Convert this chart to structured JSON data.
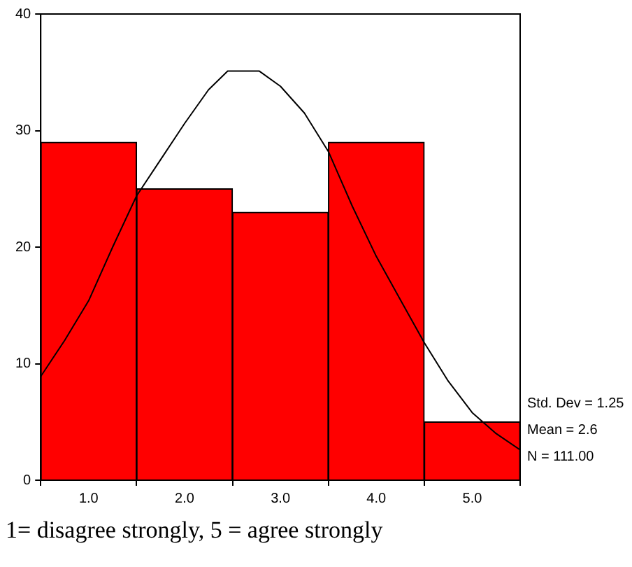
{
  "chart_data": {
    "type": "histogram",
    "bins": [
      0.5,
      1.5,
      2.5,
      3.5,
      4.5,
      5.5
    ],
    "values": [
      29,
      25,
      23,
      29,
      5
    ],
    "color": "#ff0000",
    "series": [
      {
        "type": "line",
        "color": "#000000",
        "x": [
          0.5,
          0.75,
          1.0,
          1.25,
          1.5,
          1.75,
          2.0,
          2.25,
          2.45,
          2.78,
          3.0,
          3.25,
          3.5,
          3.75,
          4.0,
          4.25,
          4.5,
          4.75,
          5.0,
          5.25,
          5.5
        ],
        "values": [
          8.9,
          12,
          15.4,
          20,
          24.4,
          27.5,
          30.6,
          33.5,
          35.1,
          35.1,
          33.8,
          31.5,
          28.2,
          23.5,
          19.2,
          15.5,
          11.8,
          8.5,
          5.8,
          4,
          2.6
        ]
      }
    ],
    "xlim": [
      0.5,
      5.5
    ],
    "xticks": [
      {
        "value": 1,
        "label": "1.0"
      },
      {
        "value": 2,
        "label": "2.0"
      },
      {
        "value": 3,
        "label": "3.0"
      },
      {
        "value": 4,
        "label": "4.0"
      },
      {
        "value": 5,
        "label": "5.0"
      }
    ],
    "ylim": [
      0,
      40
    ],
    "yticks": [
      0,
      10,
      20,
      30,
      40
    ],
    "grid": false,
    "legend": false,
    "marker": "none",
    "annotations": [
      "Std. Dev = 1.25",
      "Mean = 2.6",
      "N = 111.00",
      "1= disagree strongly, 5 = agree strongly"
    ]
  }
}
